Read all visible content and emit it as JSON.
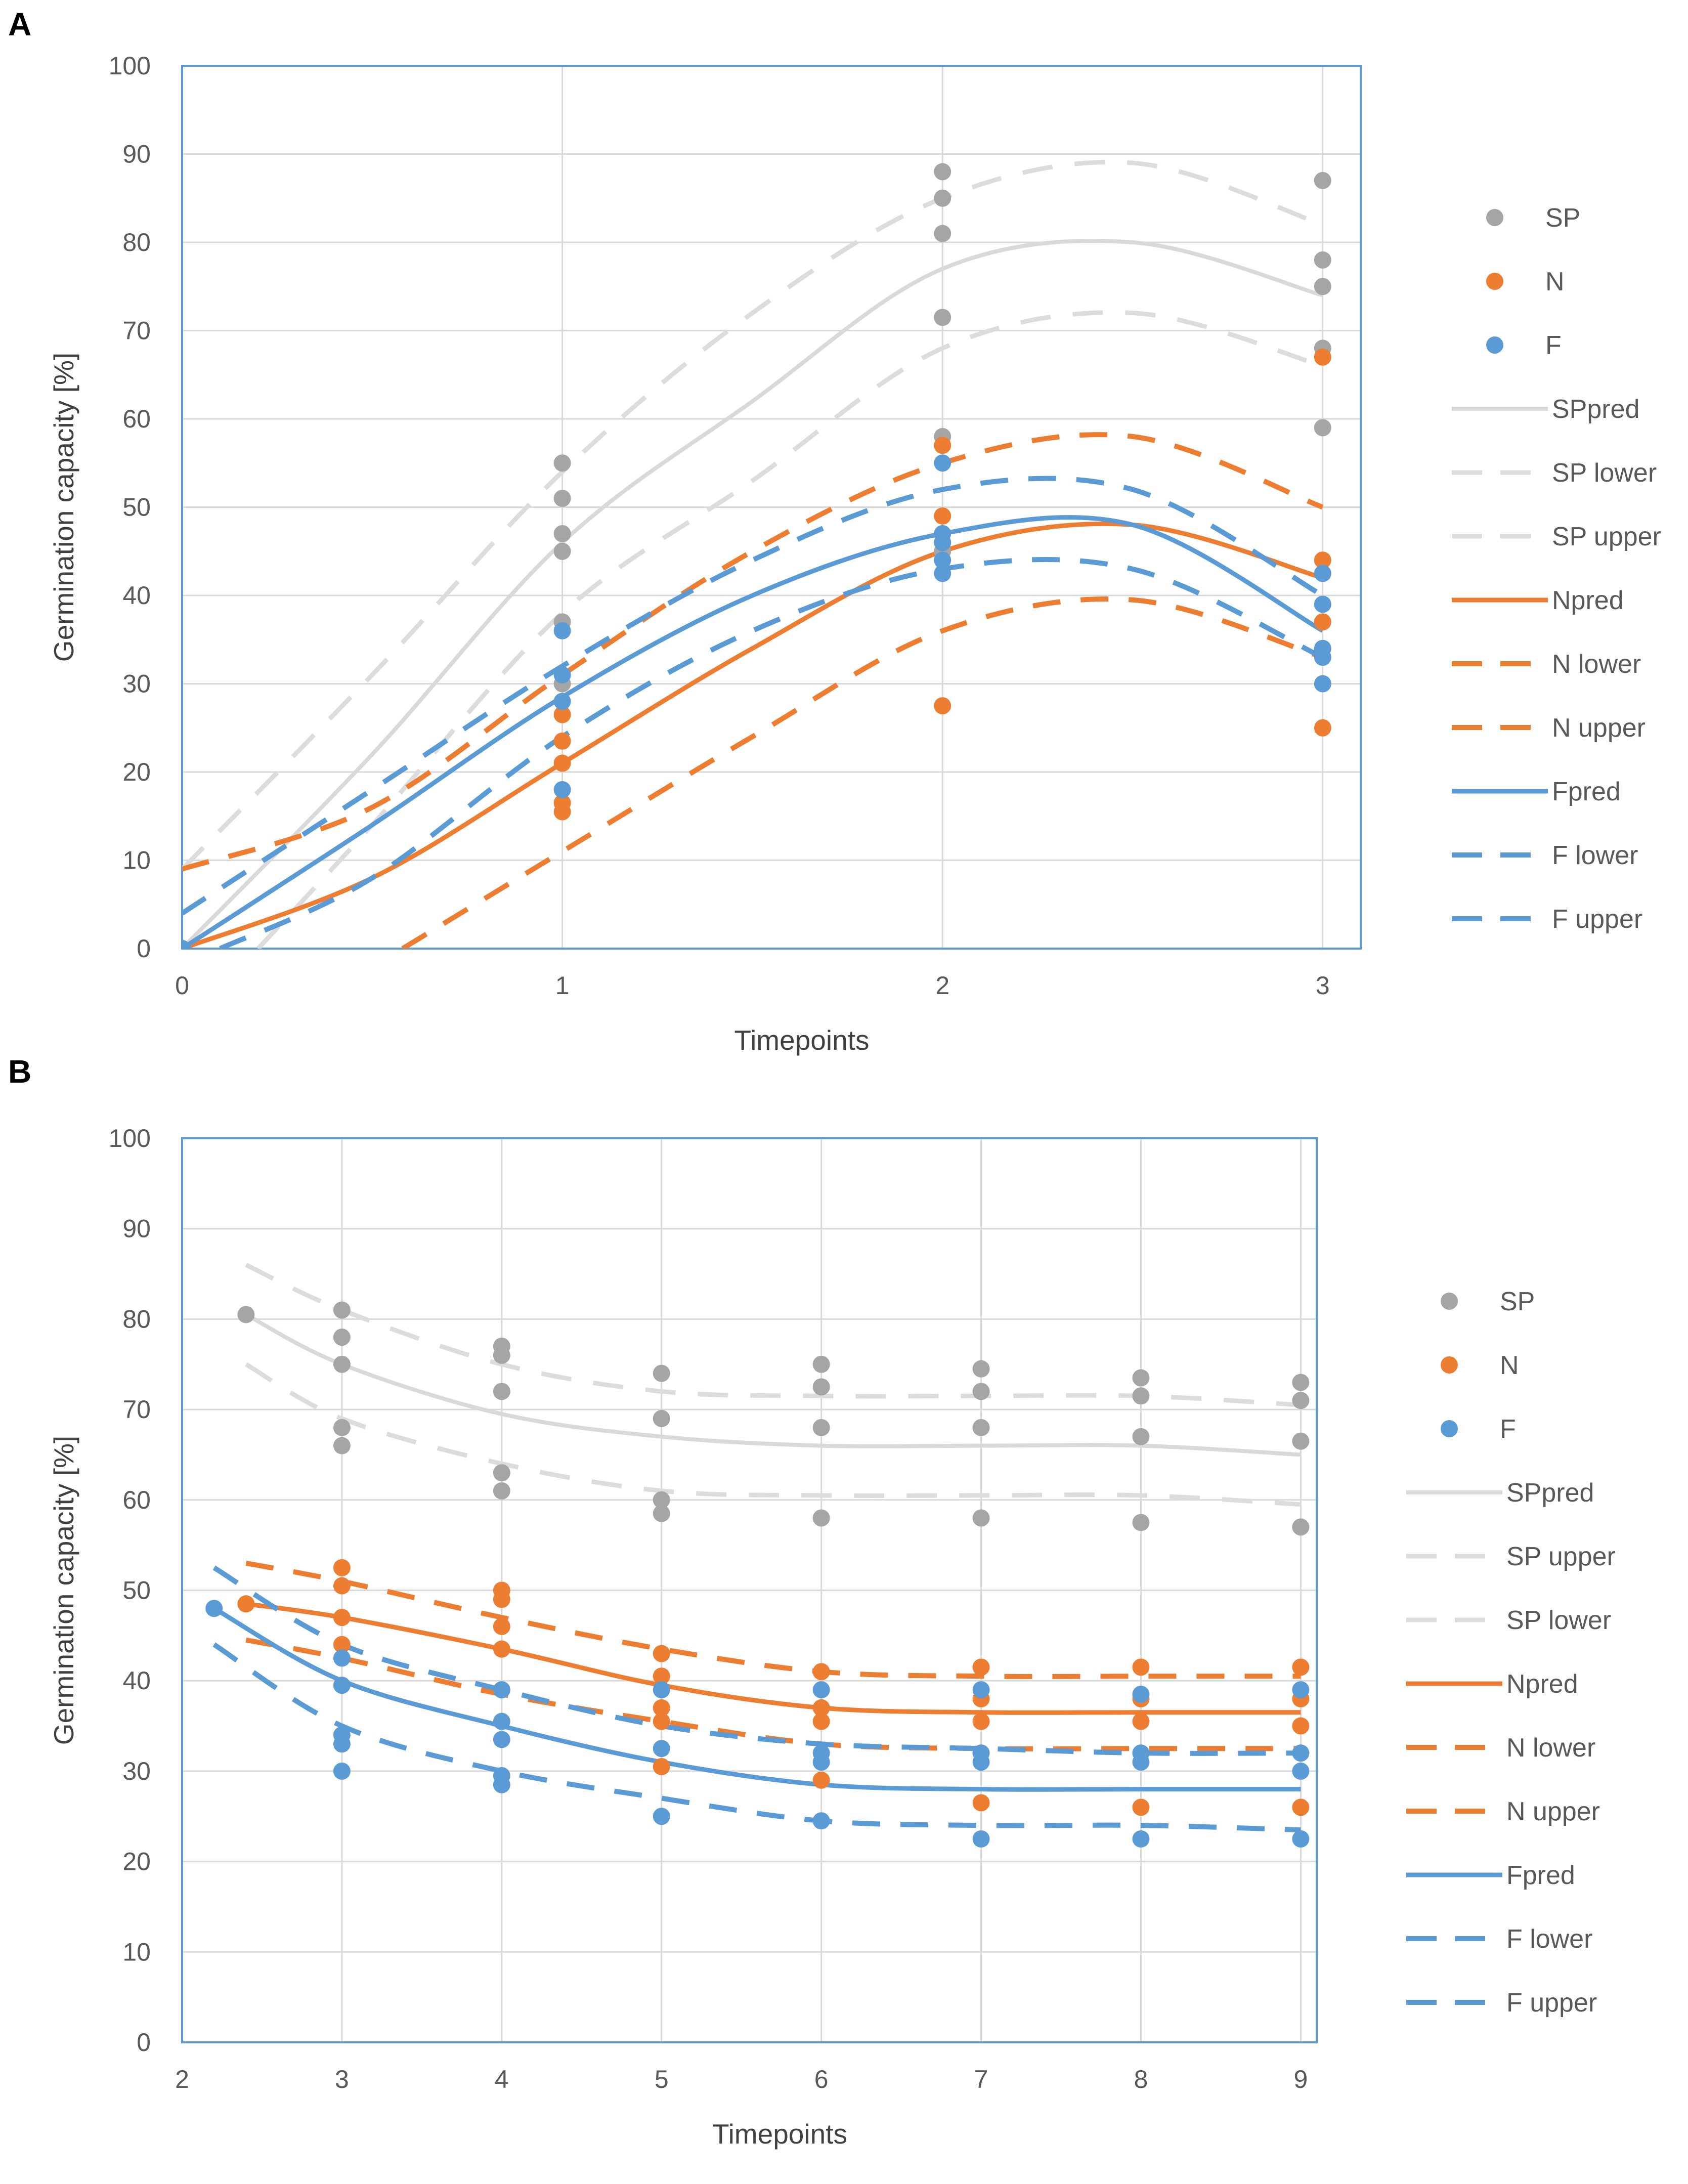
{
  "colors": {
    "SP": "#A5A5A5",
    "SP_band": "#DCDCDC",
    "SPpred": "#D9D9D9",
    "N": "#ED7D31",
    "F": "#5B9BD5",
    "frame": "#5B9BD5",
    "grid": "#D9D9D9"
  },
  "chart_data": [
    {
      "panel": "A",
      "type": "scatter",
      "xlabel": "Timepoints",
      "ylabel": "Germination capacity [%]",
      "xlim": [
        0,
        3.1
      ],
      "ylim": [
        0,
        100
      ],
      "xticks": [
        "0",
        "1",
        "2",
        "3"
      ],
      "yticks": [
        "0",
        "10",
        "20",
        "30",
        "40",
        "50",
        "60",
        "70",
        "80",
        "90",
        "100"
      ],
      "legend_position": "right",
      "legend": [
        "SP",
        "N",
        "F",
        "SPpred",
        "SP lower",
        "SP upper",
        "Npred",
        "N lower",
        "N upper",
        "Fpred",
        "F lower",
        "F upper"
      ],
      "points": {
        "SP": {
          "x": [
            0,
            1,
            1,
            1,
            1,
            1,
            1,
            2,
            2,
            2,
            2,
            2,
            2,
            2,
            3,
            3,
            3,
            3,
            3
          ],
          "y": [
            0,
            55,
            51,
            47,
            45,
            37,
            30,
            88,
            85,
            81,
            71.5,
            58,
            47,
            45,
            87,
            78,
            75,
            68,
            59
          ]
        },
        "N": {
          "x": [
            0,
            1,
            1,
            1,
            1,
            1,
            2,
            2,
            2,
            2,
            3,
            3,
            3,
            3
          ],
          "y": [
            0,
            26.5,
            23.5,
            21,
            16.5,
            15.5,
            57,
            49,
            46,
            27.5,
            67,
            44,
            37,
            25
          ]
        },
        "F": {
          "x": [
            0,
            1,
            1,
            1,
            1,
            2,
            2,
            2,
            2,
            2,
            3,
            3,
            3,
            3,
            3
          ],
          "y": [
            0,
            36,
            31,
            28,
            18,
            55,
            47,
            46,
            44,
            42.5,
            42.5,
            39,
            34,
            33,
            30
          ]
        }
      },
      "lines": {
        "SPpred": {
          "x": [
            0,
            0.5,
            1,
            1.5,
            2,
            2.5,
            3
          ],
          "y": [
            0,
            22,
            46,
            62,
            77,
            80,
            74
          ]
        },
        "SP lower": {
          "x": [
            0.2,
            0.5,
            1,
            1.5,
            2,
            2.5,
            3
          ],
          "y": [
            0,
            14,
            38,
            53,
            68,
            72,
            66
          ]
        },
        "SP upper": {
          "x": [
            0,
            0.5,
            1,
            1.5,
            2,
            2.5,
            3
          ],
          "y": [
            9,
            31,
            54,
            72,
            85,
            89,
            82
          ]
        },
        "Npred": {
          "x": [
            0,
            0.5,
            1,
            1.5,
            2,
            2.5,
            3
          ],
          "y": [
            0,
            8,
            21,
            34,
            45,
            48,
            42
          ]
        },
        "N lower": {
          "x": [
            0.58,
            1,
            1.5,
            2,
            2.5,
            3
          ],
          "y": [
            0,
            11,
            24,
            36,
            39.5,
            33
          ]
        },
        "N upper": {
          "x": [
            0,
            0.5,
            1,
            1.5,
            2,
            2.5,
            3
          ],
          "y": [
            9,
            16,
            31,
            45,
            55,
            58,
            50
          ]
        },
        "Fpred": {
          "x": [
            0,
            0.5,
            1,
            1.5,
            2,
            2.5,
            3
          ],
          "y": [
            0,
            14,
            28.5,
            40,
            47,
            48,
            36
          ]
        },
        "F lower": {
          "x": [
            0.1,
            0.5,
            1,
            1.5,
            2,
            2.5,
            3
          ],
          "y": [
            0,
            8,
            24,
            36,
            43,
            43,
            33
          ]
        },
        "F upper": {
          "x": [
            0,
            0.5,
            1,
            1.5,
            2,
            2.5,
            3
          ],
          "y": [
            4,
            18,
            32,
            44,
            52,
            52,
            40
          ]
        }
      }
    },
    {
      "panel": "B",
      "type": "scatter",
      "xlabel": "Timepoints",
      "ylabel": "Germination capacity [%]",
      "xlim": [
        2,
        9.1
      ],
      "ylim": [
        0,
        100
      ],
      "xticks": [
        "2",
        "3",
        "4",
        "5",
        "6",
        "7",
        "8",
        "9"
      ],
      "yticks": [
        "0",
        "10",
        "20",
        "30",
        "40",
        "50",
        "60",
        "70",
        "80",
        "90",
        "100"
      ],
      "legend_position": "right",
      "legend": [
        "SP",
        "N",
        "F",
        "SPpred",
        "SP upper",
        "SP lower",
        "Npred",
        "N lower",
        "N upper",
        "Fpred",
        "F lower",
        "F upper"
      ],
      "points": {
        "SP": {
          "x": [
            2.4,
            3,
            3,
            3,
            3,
            3,
            4,
            4,
            4,
            4,
            4,
            5,
            5,
            5,
            5,
            6,
            6,
            6,
            6,
            7,
            7,
            7,
            7,
            8,
            8,
            8,
            8,
            9,
            9,
            9,
            9
          ],
          "y": [
            80.5,
            81,
            78,
            75,
            68,
            66,
            77,
            76,
            72,
            63,
            61,
            74,
            69,
            60,
            58.5,
            75,
            72.5,
            68,
            58,
            74.5,
            72,
            68,
            58,
            73.5,
            71.5,
            67,
            57.5,
            73,
            71,
            66.5,
            57
          ]
        },
        "N": {
          "x": [
            2.4,
            3,
            3,
            3,
            3,
            4,
            4,
            4,
            4,
            4,
            5,
            5,
            5,
            5,
            5,
            6,
            6,
            6,
            6,
            7,
            7,
            7,
            7,
            8,
            8,
            8,
            8,
            9,
            9,
            9,
            9
          ],
          "y": [
            48.5,
            52.5,
            50.5,
            47,
            44,
            50,
            49,
            46,
            43.5,
            39,
            43,
            40.5,
            37,
            35.5,
            30.5,
            41,
            37,
            35.5,
            29,
            41.5,
            38,
            35.5,
            26.5,
            41.5,
            38,
            35.5,
            26,
            41.5,
            38,
            35,
            26
          ]
        },
        "F": {
          "x": [
            2.2,
            3,
            3,
            3,
            3,
            3,
            4,
            4,
            4,
            4,
            4,
            5,
            5,
            5,
            6,
            6,
            6,
            6,
            7,
            7,
            7,
            7,
            8,
            8,
            8,
            8,
            9,
            9,
            9,
            9
          ],
          "y": [
            48,
            42.5,
            39.5,
            34,
            33,
            30,
            39,
            35.5,
            33.5,
            29.5,
            28.5,
            39,
            32.5,
            25,
            39,
            32,
            31,
            24.5,
            39,
            32,
            31,
            22.5,
            38.5,
            32,
            31,
            22.5,
            39,
            32,
            30,
            22.5
          ]
        }
      },
      "lines": {
        "SPpred": {
          "x": [
            2.4,
            3,
            4,
            5,
            6,
            7,
            8,
            9
          ],
          "y": [
            80.5,
            75,
            69.5,
            67,
            66,
            66,
            66,
            65
          ]
        },
        "SP upper": {
          "x": [
            2.4,
            3,
            4,
            5,
            6,
            7,
            8,
            9
          ],
          "y": [
            86,
            81,
            75,
            72,
            71.5,
            71.5,
            71.5,
            70.5
          ]
        },
        "SP lower": {
          "x": [
            2.4,
            3,
            4,
            5,
            6,
            7,
            8,
            9
          ],
          "y": [
            75,
            69,
            64,
            61,
            60.5,
            60.5,
            60.5,
            59.5
          ]
        },
        "Npred": {
          "x": [
            2.4,
            3,
            4,
            5,
            6,
            7,
            8,
            9
          ],
          "y": [
            48.5,
            47,
            43.5,
            39.5,
            37,
            36.5,
            36.5,
            36.5
          ]
        },
        "N lower": {
          "x": [
            2.4,
            3,
            4,
            5,
            6,
            7,
            8,
            9
          ],
          "y": [
            44.5,
            42.5,
            38.5,
            35.5,
            33,
            32.5,
            32.5,
            32.5
          ]
        },
        "N upper": {
          "x": [
            2.4,
            3,
            4,
            5,
            6,
            7,
            8,
            9
          ],
          "y": [
            53,
            51,
            47,
            43.5,
            41,
            40.5,
            40.5,
            40.5
          ]
        },
        "Fpred": {
          "x": [
            2.2,
            3,
            4,
            5,
            6,
            7,
            8,
            9
          ],
          "y": [
            48,
            40,
            35,
            31,
            28.5,
            28,
            28,
            28
          ]
        },
        "F lower": {
          "x": [
            2.2,
            3,
            4,
            5,
            6,
            7,
            8,
            9
          ],
          "y": [
            44,
            35,
            30,
            27,
            24.5,
            24,
            24,
            23.5
          ]
        },
        "F upper": {
          "x": [
            2.2,
            3,
            4,
            5,
            6,
            7,
            8,
            9
          ],
          "y": [
            52.5,
            44,
            39,
            35,
            33,
            32.5,
            32,
            32
          ]
        }
      }
    }
  ]
}
